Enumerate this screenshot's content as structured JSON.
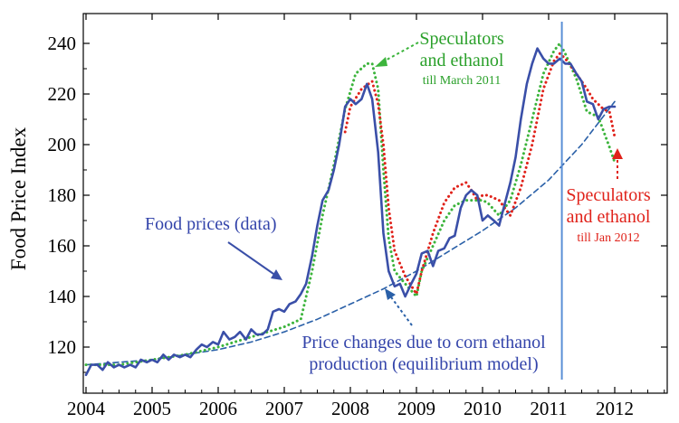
{
  "chart_data": {
    "type": "line",
    "title": "",
    "xlabel": "",
    "ylabel": "Food Price Index",
    "xlim": [
      2004.0,
      2013.0
    ],
    "ylim": [
      100,
      250
    ],
    "x_ticks": [
      2004,
      2005,
      2006,
      2007,
      2008,
      2009,
      2010,
      2011,
      2012
    ],
    "x_tick_labels": [
      "2004",
      "2005",
      "2006",
      "2007",
      "2008",
      "2009",
      "2010",
      "2011",
      "2012"
    ],
    "y_ticks": [
      120,
      140,
      160,
      180,
      200,
      220,
      240
    ],
    "y_tick_labels": [
      "120",
      "140",
      "160",
      "180",
      "200",
      "220",
      "240"
    ],
    "vertical_marker_x": 2011.2,
    "colors": {
      "data": "#3a4fa8",
      "green": "#3cb43c",
      "red": "#e0221a",
      "dashed": "#2a60a8",
      "vline": "#5b8fd6"
    },
    "series": [
      {
        "name": "Food prices (data)",
        "style": "solid",
        "color": "#3a4fa8",
        "x": [
          2004.0,
          2004.08,
          2004.17,
          2004.25,
          2004.33,
          2004.42,
          2004.5,
          2004.58,
          2004.67,
          2004.75,
          2004.83,
          2004.92,
          2005.0,
          2005.08,
          2005.17,
          2005.25,
          2005.33,
          2005.42,
          2005.5,
          2005.58,
          2005.67,
          2005.75,
          2005.83,
          2005.92,
          2006.0,
          2006.08,
          2006.17,
          2006.25,
          2006.33,
          2006.42,
          2006.5,
          2006.58,
          2006.67,
          2006.75,
          2006.83,
          2006.92,
          2007.0,
          2007.08,
          2007.17,
          2007.25,
          2007.33,
          2007.42,
          2007.5,
          2007.58,
          2007.67,
          2007.75,
          2007.83,
          2007.92,
          2008.0,
          2008.08,
          2008.17,
          2008.25,
          2008.33,
          2008.42,
          2008.5,
          2008.58,
          2008.67,
          2008.75,
          2008.83,
          2008.92,
          2009.0,
          2009.08,
          2009.17,
          2009.25,
          2009.33,
          2009.42,
          2009.5,
          2009.58,
          2009.67,
          2009.75,
          2009.83,
          2009.92,
          2010.0,
          2010.08,
          2010.17,
          2010.25,
          2010.33,
          2010.42,
          2010.5,
          2010.58,
          2010.67,
          2010.75,
          2010.83,
          2010.92,
          2011.0,
          2011.08,
          2011.17,
          2011.25,
          2011.33,
          2011.42,
          2011.5,
          2011.58,
          2011.67,
          2011.75,
          2011.83,
          2011.92,
          2012.0
        ],
        "values": [
          109,
          113,
          113,
          111,
          114,
          112,
          113,
          112,
          113,
          112,
          115,
          114,
          115,
          114,
          117,
          115,
          117,
          116,
          117,
          116,
          119,
          121,
          120,
          122,
          121,
          126,
          123,
          124,
          126,
          123,
          127,
          125,
          125,
          127,
          134,
          135,
          134,
          137,
          138,
          141,
          145,
          156,
          168,
          178,
          182,
          190,
          200,
          215,
          218,
          216,
          218,
          224,
          218,
          197,
          165,
          150,
          144,
          145,
          140,
          145,
          149,
          157,
          158,
          152,
          158,
          159,
          163,
          164,
          175,
          180,
          182,
          180,
          170,
          172,
          170,
          168,
          176,
          185,
          195,
          210,
          224,
          232,
          238,
          234,
          232,
          232,
          234,
          232,
          232,
          228,
          225,
          217,
          216,
          210,
          214,
          215,
          215
        ]
      },
      {
        "name": "Speculators and ethanol till March 2011",
        "style": "dotted",
        "color": "#3cb43c",
        "x": [
          2004.0,
          2004.5,
          2005.0,
          2005.5,
          2006.0,
          2006.5,
          2007.0,
          2007.25,
          2007.42,
          2007.58,
          2007.75,
          2007.92,
          2008.08,
          2008.25,
          2008.33,
          2008.42,
          2008.5,
          2008.58,
          2008.67,
          2008.83,
          2009.0,
          2009.08,
          2009.25,
          2009.42,
          2009.58,
          2009.75,
          2009.92,
          2010.0,
          2010.08,
          2010.25,
          2010.42,
          2010.58,
          2010.75,
          2010.92,
          2011.08,
          2011.17,
          2011.25,
          2011.42,
          2011.58,
          2011.75,
          2011.92,
          2012.0
        ],
        "values": [
          113,
          113,
          115,
          117,
          120,
          124,
          128,
          131,
          150,
          172,
          192,
          214,
          228,
          232,
          232,
          222,
          190,
          163,
          150,
          145,
          140,
          150,
          160,
          170,
          176,
          178,
          178,
          178,
          177,
          172,
          178,
          192,
          210,
          228,
          237,
          240,
          236,
          226,
          213,
          211,
          199,
          193
        ]
      },
      {
        "name": "Speculators and ethanol till Jan 2012",
        "style": "dotted",
        "color": "#e0221a",
        "x": [
          2007.92,
          2008.0,
          2008.17,
          2008.33,
          2008.42,
          2008.5,
          2008.58,
          2008.67,
          2008.83,
          2009.0,
          2009.08,
          2009.25,
          2009.42,
          2009.58,
          2009.75,
          2009.83,
          2009.92,
          2010.0,
          2010.08,
          2010.25,
          2010.42,
          2010.58,
          2010.75,
          2010.92,
          2011.08,
          2011.17,
          2011.25,
          2011.42,
          2011.58,
          2011.67,
          2011.83,
          2011.92,
          2012.0
        ],
        "values": [
          205,
          215,
          222,
          225,
          216,
          200,
          175,
          158,
          148,
          141,
          150,
          165,
          177,
          183,
          185,
          182,
          178,
          180,
          180,
          178,
          172,
          183,
          200,
          222,
          233,
          236,
          234,
          228,
          222,
          218,
          214,
          213,
          203
        ]
      },
      {
        "name": "Price changes due to corn ethanol production (equilibrium model)",
        "style": "dashed",
        "color": "#2a60a8",
        "x": [
          2004.0,
          2004.5,
          2005.0,
          2005.5,
          2006.0,
          2006.5,
          2007.0,
          2007.5,
          2008.0,
          2008.5,
          2009.0,
          2009.5,
          2010.0,
          2010.5,
          2011.0,
          2011.5,
          2012.0
        ],
        "values": [
          113,
          114,
          115,
          117,
          119,
          122,
          126,
          131,
          137,
          143,
          150,
          158,
          166,
          175,
          186,
          200,
          217
        ]
      }
    ],
    "annotations": [
      {
        "key": "green_main",
        "text": "Speculators"
      },
      {
        "key": "green_main2",
        "text": "and ethanol"
      },
      {
        "key": "green_sub",
        "text": "till March 2011"
      },
      {
        "key": "red_main",
        "text": "Speculators"
      },
      {
        "key": "red_main2",
        "text": "and ethanol"
      },
      {
        "key": "red_sub",
        "text": "till Jan 2012"
      },
      {
        "key": "food",
        "text": "Food prices (data)"
      },
      {
        "key": "corn1",
        "text": "Price changes due to corn ethanol"
      },
      {
        "key": "corn2",
        "text": "production (equilibrium model)"
      }
    ]
  }
}
